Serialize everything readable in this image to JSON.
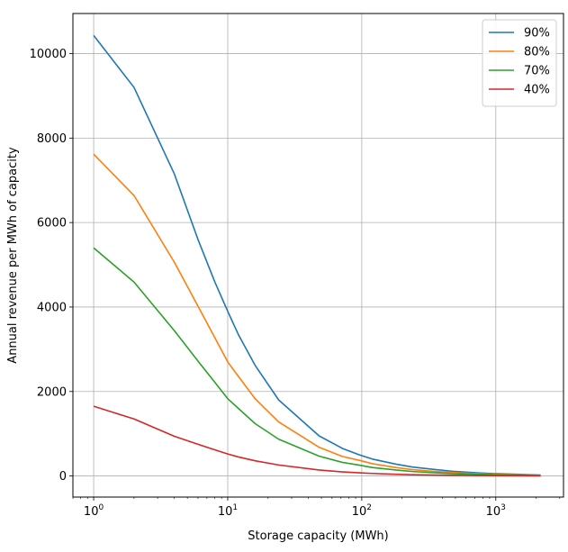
{
  "chart_data": {
    "type": "line",
    "title": "",
    "xlabel": "Storage capacity (MWh)",
    "ylabel": "Annual revenue per MWh of capacity",
    "xscale": "log",
    "xlim": [
      0.7,
      3200
    ],
    "ylim": [
      -500,
      10950
    ],
    "grid": true,
    "legend_position": "top-right",
    "x_ticks": [
      {
        "base": "10",
        "exp": "0",
        "value": 1
      },
      {
        "base": "10",
        "exp": "1",
        "value": 10
      },
      {
        "base": "10",
        "exp": "2",
        "value": 100
      },
      {
        "base": "10",
        "exp": "3",
        "value": 1000
      }
    ],
    "y_ticks": [
      {
        "label": "0",
        "value": 0
      },
      {
        "label": "2000",
        "value": 2000
      },
      {
        "label": "4000",
        "value": 4000
      },
      {
        "label": "6000",
        "value": 6000
      },
      {
        "label": "8000",
        "value": 8000
      },
      {
        "label": "10000",
        "value": 10000
      }
    ],
    "x": [
      1,
      2,
      4,
      6,
      8,
      10,
      12,
      16,
      24,
      48,
      72,
      96,
      120,
      180,
      240,
      360,
      480,
      720,
      960,
      1440,
      2160
    ],
    "series": [
      {
        "name": "90%",
        "color": "#1f77b4",
        "values": [
          10430,
          9200,
          7150,
          5600,
          4600,
          3900,
          3350,
          2620,
          1800,
          950,
          650,
          500,
          400,
          280,
          210,
          150,
          110,
          75,
          55,
          40,
          20
        ]
      },
      {
        "name": "80%",
        "color": "#ff7f0e",
        "values": [
          7620,
          6640,
          5060,
          4020,
          3280,
          2700,
          2360,
          1830,
          1280,
          680,
          460,
          370,
          290,
          200,
          150,
          105,
          80,
          55,
          40,
          30,
          15
        ]
      },
      {
        "name": "70%",
        "color": "#2ca02c",
        "values": [
          5400,
          4590,
          3440,
          2720,
          2220,
          1830,
          1600,
          1240,
          870,
          470,
          320,
          255,
          200,
          140,
          105,
          75,
          55,
          40,
          30,
          20,
          10
        ]
      },
      {
        "name": "40%",
        "color": "#d62728",
        "values": [
          1650,
          1350,
          940,
          750,
          620,
          520,
          450,
          360,
          260,
          140,
          95,
          75,
          60,
          40,
          30,
          22,
          16,
          11,
          8,
          6,
          3
        ]
      }
    ]
  }
}
